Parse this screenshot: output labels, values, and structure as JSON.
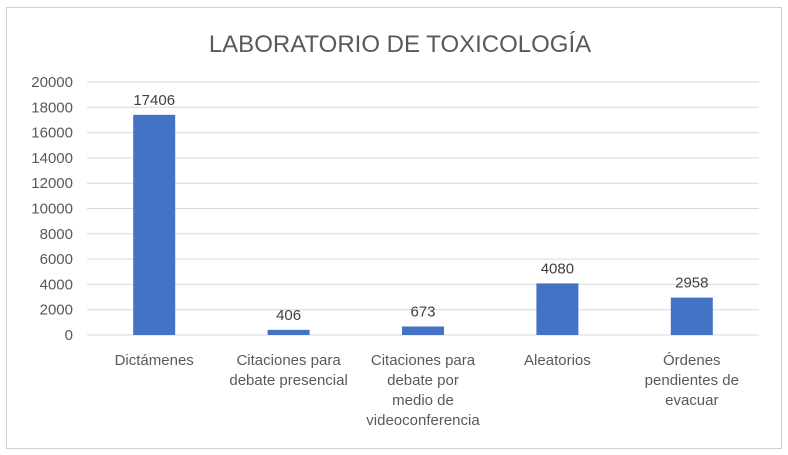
{
  "chart_data": {
    "type": "bar",
    "title": "LABORATORIO DE TOXICOLOGÍA",
    "categories": [
      [
        "Dictámenes"
      ],
      [
        "Citaciones para",
        "debate presencial"
      ],
      [
        "Citaciones para",
        "debate por",
        "medio de",
        "videoconferencia"
      ],
      [
        "Aleatorios"
      ],
      [
        "Órdenes",
        "pendientes de",
        "evacuar"
      ]
    ],
    "values": [
      17406,
      406,
      673,
      4080,
      2958
    ],
    "data_labels": [
      "17406",
      "406",
      "673",
      "4080",
      "2958"
    ],
    "ylim": [
      0,
      20000
    ],
    "yticks": [
      "0",
      "2000",
      "4000",
      "6000",
      "8000",
      "10000",
      "12000",
      "14000",
      "16000",
      "18000",
      "20000"
    ],
    "grid": true,
    "legend": "none",
    "bar_color": "#4472C4",
    "grid_color": "#d9d9d9"
  }
}
